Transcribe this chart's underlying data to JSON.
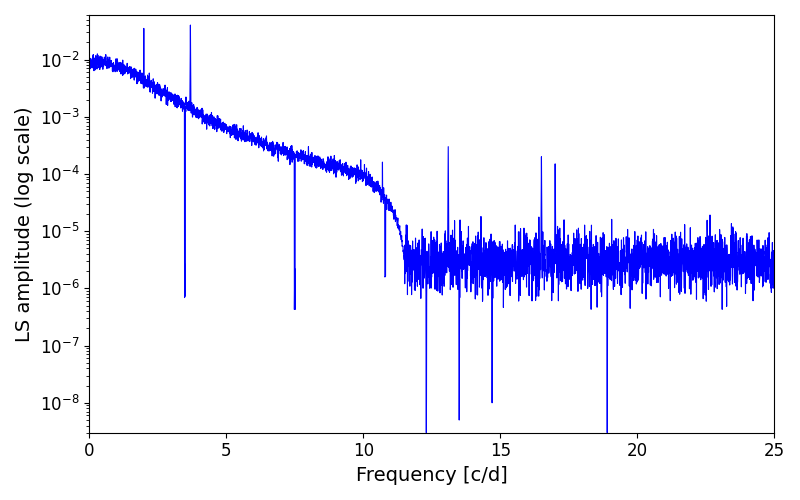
{
  "xlabel": "Frequency [c/d]",
  "ylabel": "LS amplitude (log scale)",
  "title": "",
  "line_color": "#0000ff",
  "line_width": 0.8,
  "xlim": [
    0,
    25
  ],
  "ylim": [
    3e-09,
    0.06
  ],
  "background_color": "#ffffff",
  "figsize": [
    8.0,
    5.0
  ],
  "dpi": 100,
  "seed": 7,
  "xlabel_fontsize": 14,
  "ylabel_fontsize": 14,
  "tick_fontsize": 12
}
